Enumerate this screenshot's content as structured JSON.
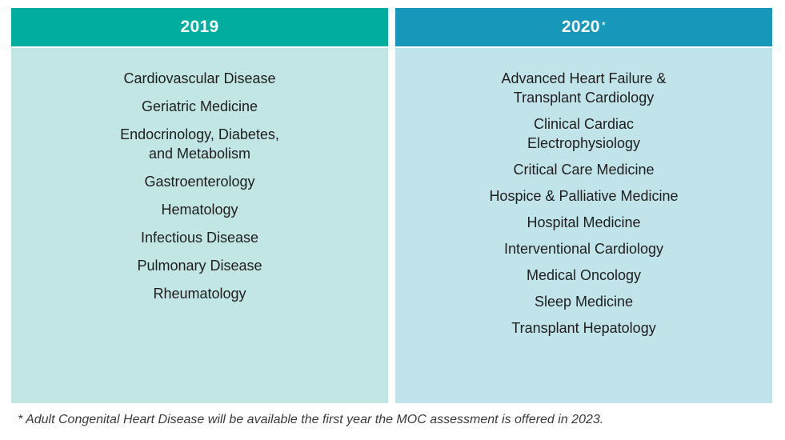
{
  "columns": [
    {
      "year": "2019",
      "marker": "",
      "items": [
        "Cardiovascular Disease",
        "Geriatric Medicine",
        "Endocrinology, Diabetes,\nand Metabolism",
        "Gastroenterology",
        "Hematology",
        "Infectious Disease",
        "Pulmonary Disease",
        "Rheumatology"
      ]
    },
    {
      "year": "2020",
      "marker": "*",
      "items": [
        "Advanced Heart Failure &\nTransplant Cardiology",
        "Clinical Cardiac\nElectrophysiology",
        "Critical Care Medicine",
        "Hospice & Palliative Medicine",
        "Hospital Medicine",
        "Interventional Cardiology",
        "Medical Oncology",
        "Sleep Medicine",
        "Transplant Hepatology"
      ]
    }
  ],
  "footnote": "* Adult Congenital Heart Disease will be available the first year the MOC assessment is offered in 2023.",
  "colors": {
    "header_2019": "#00ad9f",
    "header_2020": "#1797ba",
    "body_2019": "#c1e6e3",
    "body_2020": "#c1e3ea"
  }
}
